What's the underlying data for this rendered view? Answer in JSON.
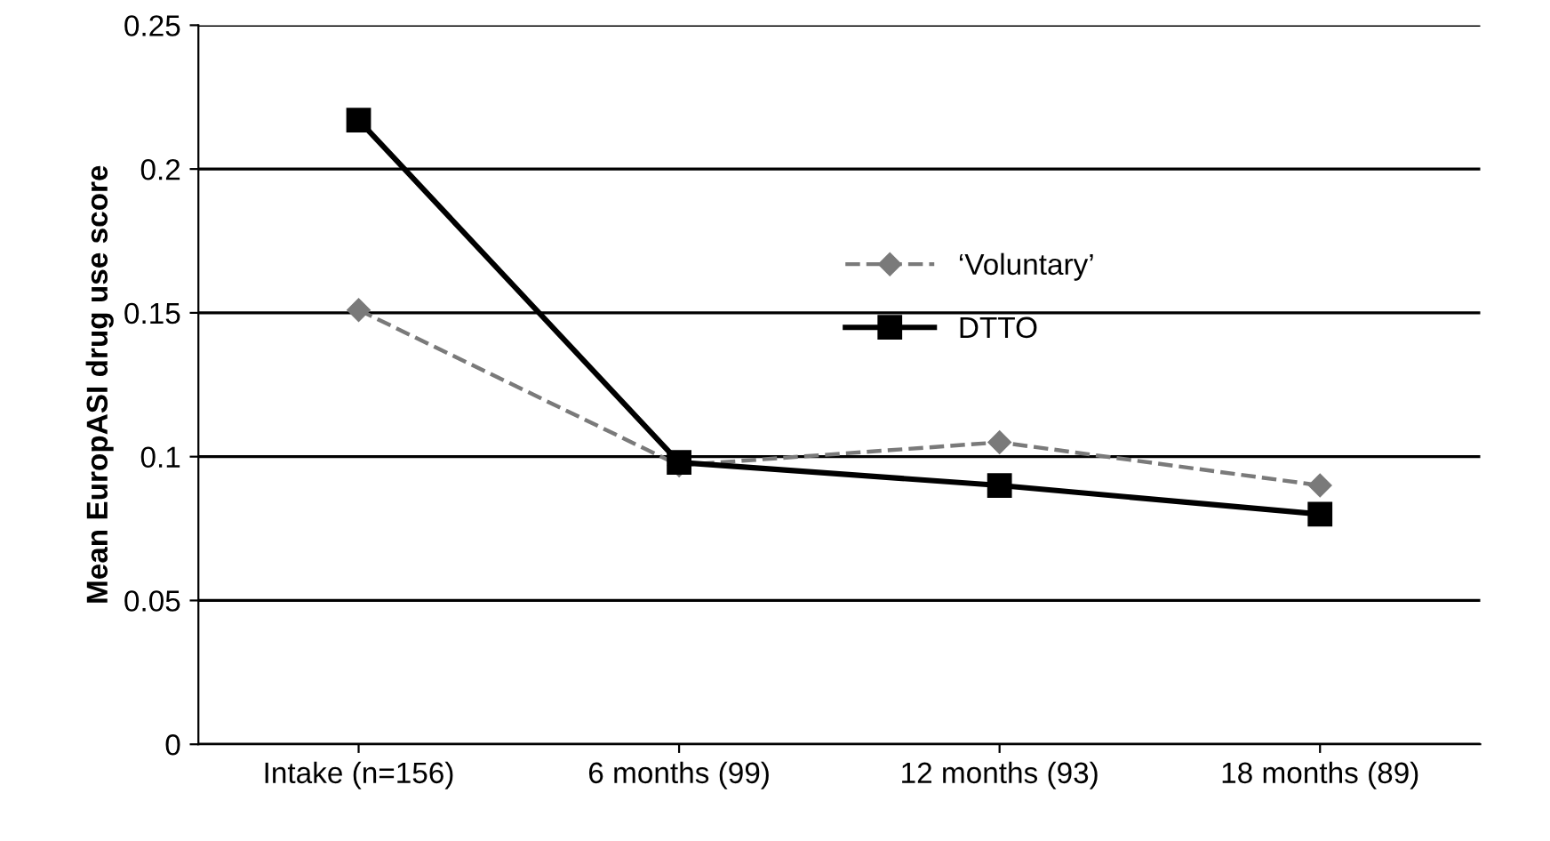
{
  "chart_data": {
    "type": "line",
    "ylabel": "Mean EuropASI drug use score",
    "categories": [
      "Intake (n=156)",
      "6 months (99)",
      "12 months (93)",
      "18 months (89)"
    ],
    "series": [
      {
        "name": "‘Voluntary’",
        "color": "#7a7a7a",
        "values": [
          0.151,
          0.097,
          0.105,
          0.09
        ],
        "marker": "diamond",
        "line_style": "dashed"
      },
      {
        "name": "DTTO",
        "color": "#000000",
        "values": [
          0.217,
          0.098,
          0.09,
          0.08
        ],
        "marker": "square",
        "line_style": "solid"
      }
    ],
    "ylim": [
      0,
      0.25
    ],
    "yticks": [
      0,
      0.05,
      0.1,
      0.15,
      0.2,
      0.25
    ],
    "grid": "y",
    "legend": "center"
  }
}
